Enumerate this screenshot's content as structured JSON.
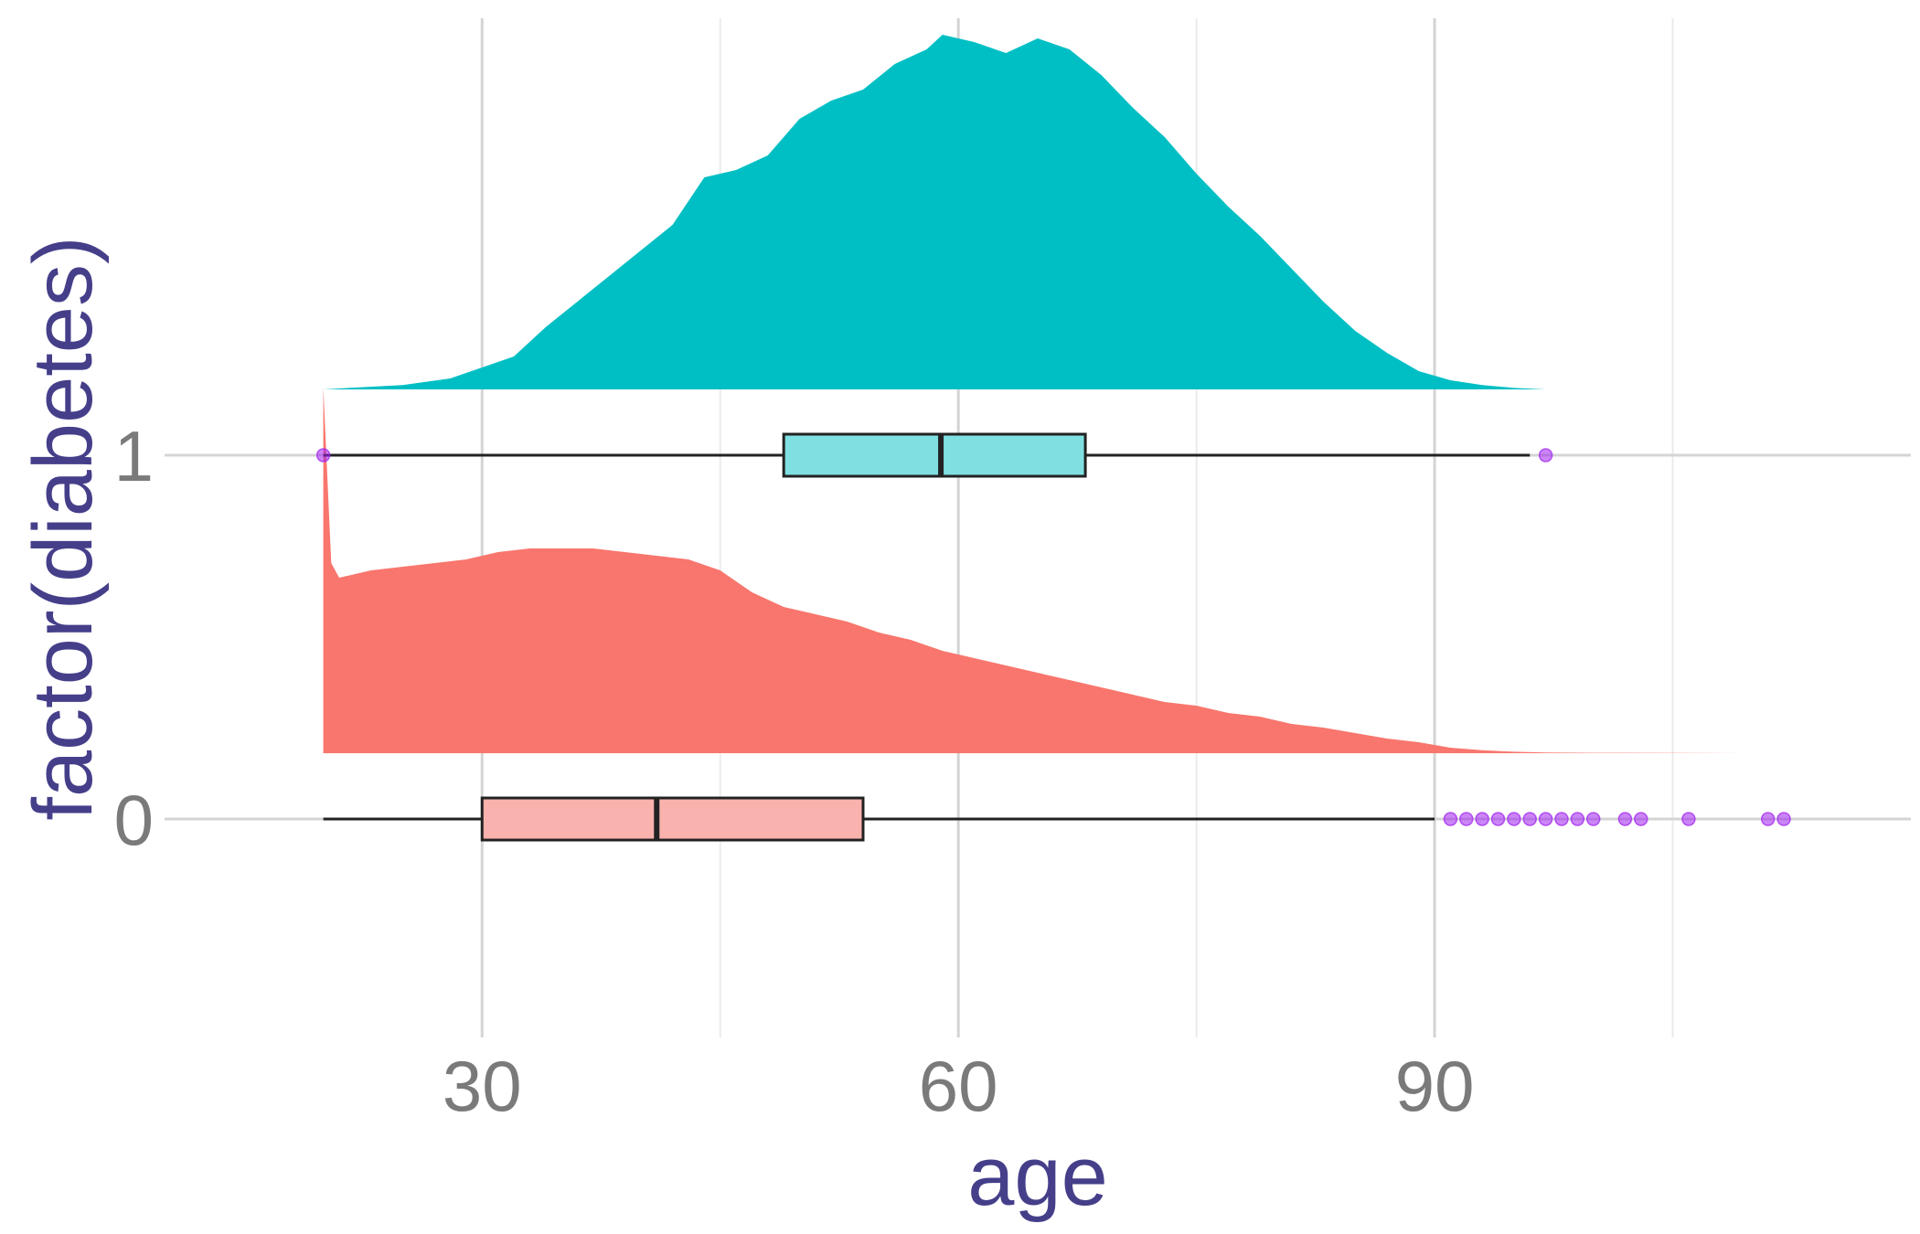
{
  "chart_data": {
    "type": "raincloud",
    "xlabel": "age",
    "ylabel": "factor(diabetes)",
    "xlim": [
      10,
      120
    ],
    "x_ticks": [
      30,
      60,
      90
    ],
    "x_tick_labels": [
      "30",
      "60",
      "90"
    ],
    "grid": true,
    "categories": [
      "0",
      "1"
    ],
    "groups": [
      {
        "category": "1",
        "color": "#00bfc4",
        "box_fill": "#7fdfe1",
        "density": [
          [
            20,
            0.0
          ],
          [
            22,
            0.005
          ],
          [
            25,
            0.012
          ],
          [
            28,
            0.03
          ],
          [
            30,
            0.06
          ],
          [
            32,
            0.09
          ],
          [
            34,
            0.17
          ],
          [
            36,
            0.24
          ],
          [
            38,
            0.31
          ],
          [
            40,
            0.38
          ],
          [
            42,
            0.45
          ],
          [
            44,
            0.58
          ],
          [
            46,
            0.6
          ],
          [
            48,
            0.64
          ],
          [
            50,
            0.74
          ],
          [
            52,
            0.79
          ],
          [
            54,
            0.82
          ],
          [
            56,
            0.89
          ],
          [
            58,
            0.93
          ],
          [
            59,
            0.97
          ],
          [
            61,
            0.95
          ],
          [
            63,
            0.92
          ],
          [
            65,
            0.96
          ],
          [
            67,
            0.93
          ],
          [
            69,
            0.86
          ],
          [
            71,
            0.77
          ],
          [
            73,
            0.69
          ],
          [
            75,
            0.59
          ],
          [
            77,
            0.5
          ],
          [
            79,
            0.42
          ],
          [
            81,
            0.33
          ],
          [
            83,
            0.24
          ],
          [
            85,
            0.16
          ],
          [
            87,
            0.1
          ],
          [
            89,
            0.05
          ],
          [
            91,
            0.025
          ],
          [
            93,
            0.012
          ],
          [
            95,
            0.004
          ],
          [
            97,
            0.0
          ]
        ],
        "box": {
          "min": 20,
          "q1": 49,
          "median": 58.9,
          "q3": 68,
          "max": 96
        },
        "outliers": [
          20,
          97
        ]
      },
      {
        "category": "0",
        "color": "#f8766d",
        "box_fill": "#f9b2ad",
        "density": [
          [
            20,
            1.0
          ],
          [
            20.5,
            0.52
          ],
          [
            21,
            0.48
          ],
          [
            23,
            0.5
          ],
          [
            25,
            0.51
          ],
          [
            27,
            0.52
          ],
          [
            29,
            0.53
          ],
          [
            31,
            0.55
          ],
          [
            33,
            0.56
          ],
          [
            35,
            0.56
          ],
          [
            37,
            0.56
          ],
          [
            39,
            0.55
          ],
          [
            41,
            0.54
          ],
          [
            43,
            0.53
          ],
          [
            45,
            0.5
          ],
          [
            47,
            0.44
          ],
          [
            49,
            0.4
          ],
          [
            51,
            0.38
          ],
          [
            53,
            0.36
          ],
          [
            55,
            0.33
          ],
          [
            57,
            0.31
          ],
          [
            59,
            0.28
          ],
          [
            61,
            0.26
          ],
          [
            63,
            0.24
          ],
          [
            65,
            0.22
          ],
          [
            67,
            0.2
          ],
          [
            69,
            0.18
          ],
          [
            71,
            0.16
          ],
          [
            73,
            0.14
          ],
          [
            75,
            0.13
          ],
          [
            77,
            0.11
          ],
          [
            79,
            0.1
          ],
          [
            81,
            0.08
          ],
          [
            83,
            0.07
          ],
          [
            85,
            0.055
          ],
          [
            87,
            0.04
          ],
          [
            89,
            0.03
          ],
          [
            91,
            0.015
          ],
          [
            93,
            0.008
          ],
          [
            95,
            0.004
          ],
          [
            97,
            0.002
          ],
          [
            100,
            0.001
          ],
          [
            105,
            0.0005
          ],
          [
            111,
            0.0
          ]
        ],
        "box": {
          "min": 20,
          "q1": 30,
          "median": 41,
          "q3": 54,
          "max": 90
        },
        "outliers": [
          91,
          92,
          93,
          94,
          95,
          96,
          97,
          98,
          99,
          100,
          102,
          103,
          106,
          111,
          112
        ]
      }
    ]
  }
}
